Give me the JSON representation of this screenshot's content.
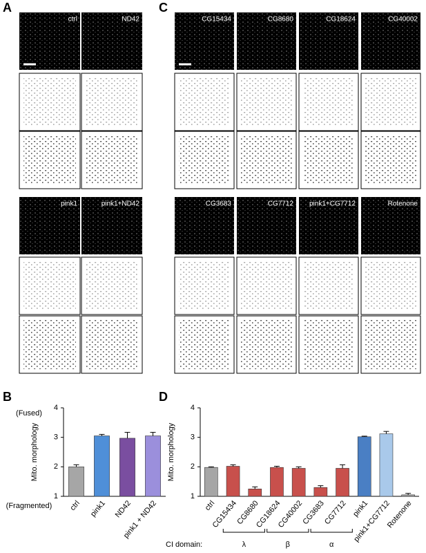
{
  "panels": {
    "A": {
      "letter": "A",
      "top": [
        "ctrl",
        "ND42"
      ],
      "bottom": [
        "pink1",
        "pink1+ND42"
      ]
    },
    "C": {
      "letter": "C",
      "top": [
        "CG15434",
        "CG8680",
        "CG18624",
        "CG40002"
      ],
      "bottom": [
        "CG3683",
        "CG7712",
        "pink1+CG7712",
        "Rotenone"
      ]
    }
  },
  "chart_data": [
    {
      "type": "bar",
      "letter": "B",
      "y_label": "Mito. morphology",
      "annotations": [
        "(Fused)",
        "(Fragmented)"
      ],
      "categories": [
        "ctrl",
        "pink1",
        "ND42",
        "pink1 + ND42"
      ],
      "values": [
        2.0,
        3.05,
        2.97,
        3.05
      ],
      "errors": [
        0.07,
        0.05,
        0.2,
        0.12
      ],
      "colors": [
        "#a6a6a6",
        "#4f8fd8",
        "#7a4ea0",
        "#9b8fdc"
      ],
      "ylim": [
        1,
        4
      ],
      "yticks": [
        1,
        2,
        3,
        4
      ]
    },
    {
      "type": "bar",
      "letter": "D",
      "y_label": "Mito. morphology",
      "categories": [
        "ctrl",
        "CG15434",
        "CG8680",
        "CG18624",
        "CG40002",
        "CG3683",
        "CG7712",
        "pink1",
        "pink1+CG7712",
        "Rotenone"
      ],
      "values": [
        1.98,
        2.02,
        1.25,
        1.98,
        1.95,
        1.3,
        1.95,
        3.02,
        3.12,
        1.05
      ],
      "errors": [
        0.02,
        0.05,
        0.07,
        0.04,
        0.05,
        0.06,
        0.12,
        0.02,
        0.08,
        0.05
      ],
      "colors": [
        "#a6a6a6",
        "#c8504c",
        "#c8504c",
        "#c8504c",
        "#c8504c",
        "#c8504c",
        "#c8504c",
        "#4a7fc4",
        "#a9c9ea",
        "#a6a6a6"
      ],
      "ylim": [
        1,
        4
      ],
      "yticks": [
        1,
        2,
        3,
        4
      ],
      "domain_label": "CI domain:",
      "domains": [
        {
          "symbol": "λ",
          "first": "CG15434",
          "last": "CG8680"
        },
        {
          "symbol": "β",
          "first": "CG18624",
          "last": "CG40002"
        },
        {
          "symbol": "α",
          "first": "CG3683",
          "last": "CG7712"
        }
      ]
    }
  ]
}
